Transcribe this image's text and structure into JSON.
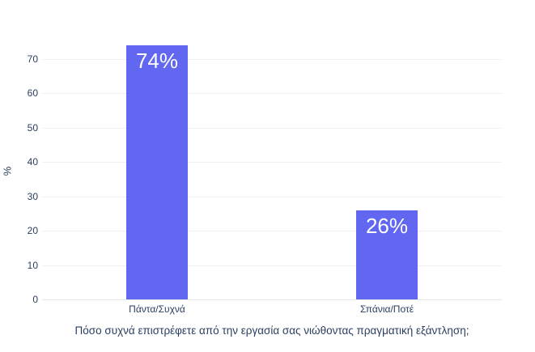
{
  "chart_data": {
    "type": "bar",
    "categories": [
      "Πάντα/Συχνά",
      "Σπάνια/Ποτέ"
    ],
    "values": [
      74,
      26
    ],
    "bar_labels": [
      "74%",
      "26%"
    ],
    "title": "",
    "xlabel": "Πόσο συχνά επιστρέφετε από την εργασία σας νιώθοντας πραγματική εξάντληση;",
    "ylabel": "%",
    "ylim": [
      0,
      78
    ],
    "yticks": [
      0,
      10,
      20,
      30,
      40,
      50,
      60,
      70
    ],
    "grid": true,
    "legend": "none",
    "colors": {
      "bar": "#6167F0",
      "bar_label_text": "#FFFFFF",
      "tick_text": "#2A3F5F",
      "axis_title_text": "#2A3F5F",
      "gridline": "#EDEFF3",
      "zeroline": "#E3E6EB",
      "background": "#FFFFFF"
    }
  }
}
